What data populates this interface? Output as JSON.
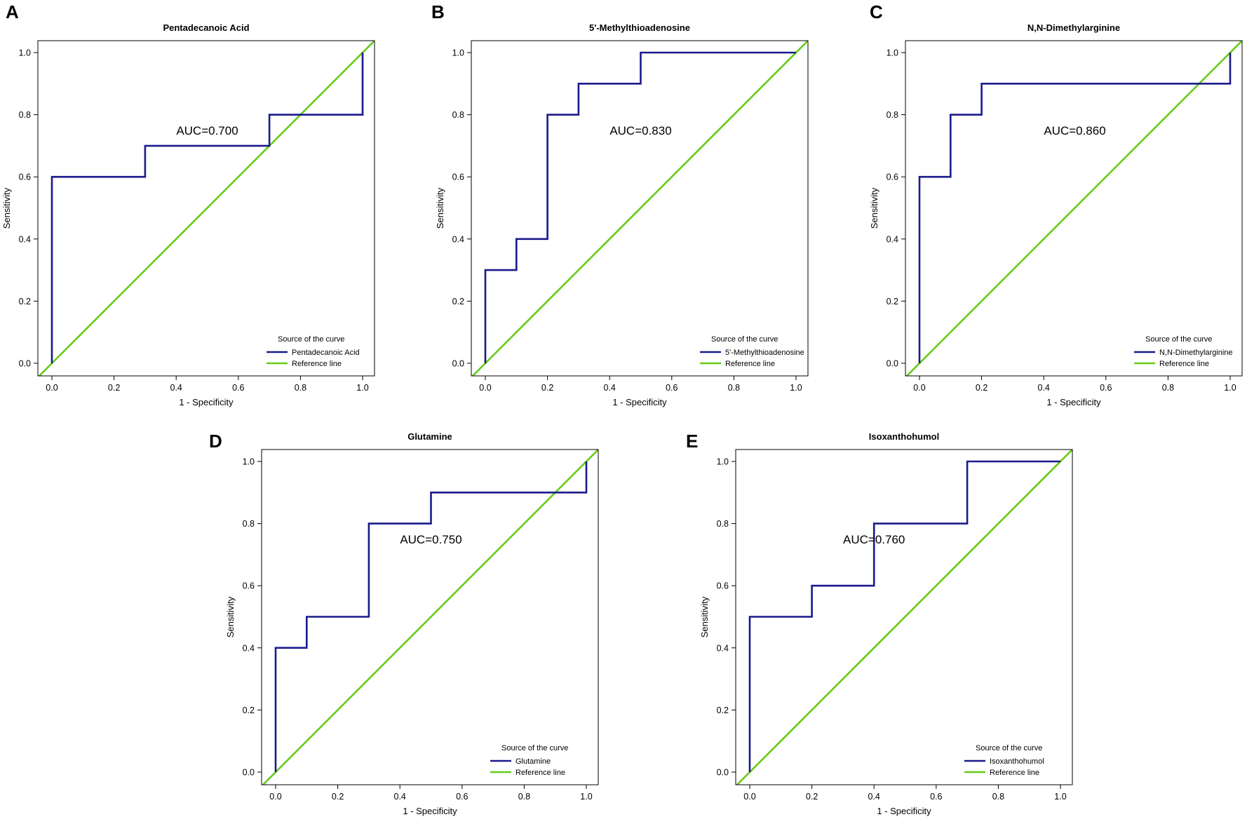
{
  "colors": {
    "roc": "#1a1a8c",
    "reference": "#66cc1a",
    "axis": "#000000"
  },
  "chart_data": [
    {
      "panel": "A",
      "type": "line",
      "title": "Pentadecanoic Acid",
      "xlabel": "1 - Specificity",
      "ylabel": "Sensitivity",
      "xlim": [
        0,
        1
      ],
      "ylim": [
        0,
        1
      ],
      "ticks": [
        "0.0",
        "0.2",
        "0.4",
        "0.6",
        "0.8",
        "1.0"
      ],
      "auc_label": "AUC=0.700",
      "auc_at": [
        0.5,
        0.75
      ],
      "legend_title": "Source of the curve",
      "series": [
        {
          "name": "Pentadecanoic Acid",
          "role": "roc",
          "x": [
            0,
            0,
            0.3,
            0.3,
            0.7,
            0.7,
            1.0,
            1.0
          ],
          "y": [
            0,
            0.6,
            0.6,
            0.7,
            0.7,
            0.8,
            0.8,
            1.0
          ]
        },
        {
          "name": "Reference line",
          "role": "reference",
          "x": [
            0,
            1
          ],
          "y": [
            0,
            1
          ]
        }
      ]
    },
    {
      "panel": "B",
      "type": "line",
      "title": "5'-Methylthioadenosine",
      "xlabel": "1 - Specificity",
      "ylabel": "Sensitivity",
      "xlim": [
        0,
        1
      ],
      "ylim": [
        0,
        1
      ],
      "ticks": [
        "0.0",
        "0.2",
        "0.4",
        "0.6",
        "0.8",
        "1.0"
      ],
      "auc_label": "AUC=0.830",
      "auc_at": [
        0.5,
        0.75
      ],
      "legend_title": "Source of the curve",
      "series": [
        {
          "name": "5'-Methylthioadenosine",
          "role": "roc",
          "x": [
            0,
            0,
            0.1,
            0.1,
            0.2,
            0.2,
            0.3,
            0.3,
            0.5,
            0.5,
            1.0
          ],
          "y": [
            0,
            0.3,
            0.3,
            0.4,
            0.4,
            0.8,
            0.8,
            0.9,
            0.9,
            1.0,
            1.0
          ]
        },
        {
          "name": "Reference line",
          "role": "reference",
          "x": [
            0,
            1
          ],
          "y": [
            0,
            1
          ]
        }
      ]
    },
    {
      "panel": "C",
      "type": "line",
      "title": "N,N-Dimethylarginine",
      "xlabel": "1 - Specificity",
      "ylabel": "Sensitivity",
      "xlim": [
        0,
        1
      ],
      "ylim": [
        0,
        1
      ],
      "ticks": [
        "0.0",
        "0.2",
        "0.4",
        "0.6",
        "0.8",
        "1.0"
      ],
      "auc_label": "AUC=0.860",
      "auc_at": [
        0.5,
        0.75
      ],
      "legend_title": "Source of the curve",
      "series": [
        {
          "name": "N,N-Dimethylarginine",
          "role": "roc",
          "x": [
            0,
            0,
            0.1,
            0.1,
            0.2,
            0.2,
            1.0,
            1.0
          ],
          "y": [
            0,
            0.6,
            0.6,
            0.8,
            0.8,
            0.9,
            0.9,
            1.0
          ]
        },
        {
          "name": "Reference line",
          "role": "reference",
          "x": [
            0,
            1
          ],
          "y": [
            0,
            1
          ]
        }
      ]
    },
    {
      "panel": "D",
      "type": "line",
      "title": "Glutamine",
      "xlabel": "1 - Specificity",
      "ylabel": "Sensitivity",
      "xlim": [
        0,
        1
      ],
      "ylim": [
        0,
        1
      ],
      "ticks": [
        "0.0",
        "0.2",
        "0.4",
        "0.6",
        "0.8",
        "1.0"
      ],
      "auc_label": "AUC=0.750",
      "auc_at": [
        0.5,
        0.75
      ],
      "legend_title": "Source of the curve",
      "series": [
        {
          "name": "Glutamine",
          "role": "roc",
          "x": [
            0,
            0,
            0.1,
            0.1,
            0.3,
            0.3,
            0.5,
            0.5,
            1.0,
            1.0
          ],
          "y": [
            0,
            0.4,
            0.4,
            0.5,
            0.5,
            0.8,
            0.8,
            0.9,
            0.9,
            1.0
          ]
        },
        {
          "name": "Reference line",
          "role": "reference",
          "x": [
            0,
            1
          ],
          "y": [
            0,
            1
          ]
        }
      ]
    },
    {
      "panel": "E",
      "type": "line",
      "title": "Isoxanthohumol",
      "xlabel": "1 - Specificity",
      "ylabel": "Sensitivity",
      "xlim": [
        0,
        1
      ],
      "ylim": [
        0,
        1
      ],
      "ticks": [
        "0.0",
        "0.2",
        "0.4",
        "0.6",
        "0.8",
        "1.0"
      ],
      "auc_label": "AUC=0.760",
      "auc_at": [
        0.4,
        0.75
      ],
      "legend_title": "Source of the curve",
      "series": [
        {
          "name": "Isoxanthohumol",
          "role": "roc",
          "x": [
            0,
            0,
            0.2,
            0.2,
            0.4,
            0.4,
            0.7,
            0.7,
            1.0
          ],
          "y": [
            0,
            0.5,
            0.5,
            0.6,
            0.6,
            0.8,
            0.8,
            1.0,
            1.0
          ]
        },
        {
          "name": "Reference line",
          "role": "reference",
          "x": [
            0,
            1
          ],
          "y": [
            0,
            1
          ]
        }
      ]
    }
  ]
}
